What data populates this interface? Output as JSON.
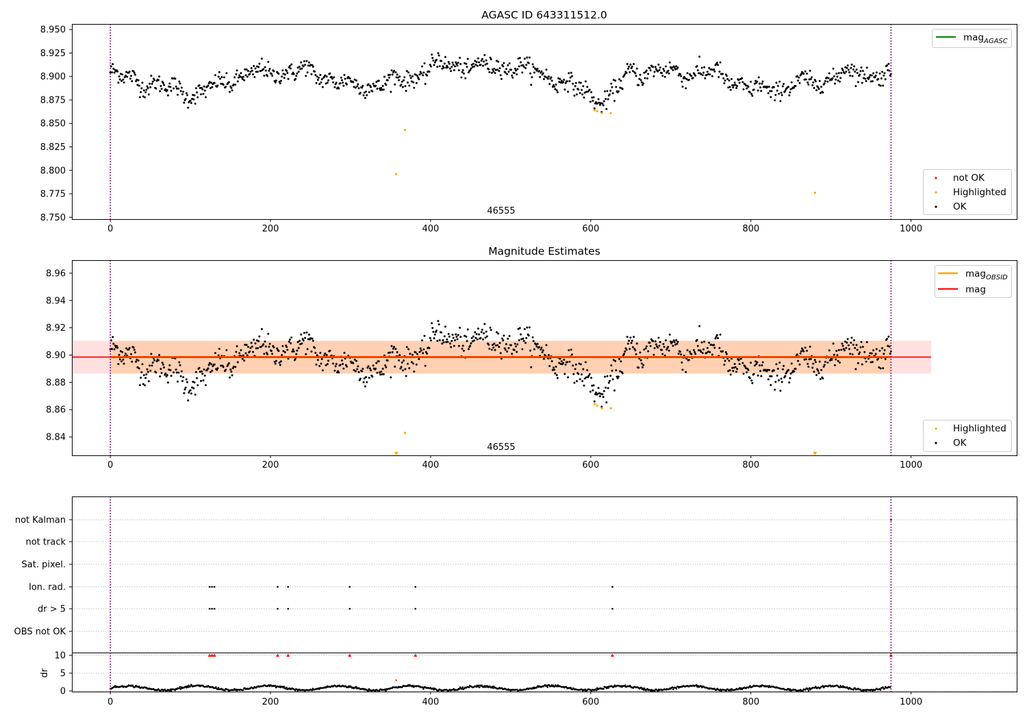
{
  "chart_data": [
    {
      "type": "scatter",
      "title": "AGASC ID 643311512.0",
      "xlim": [
        -48,
        1132
      ],
      "ylim": [
        8.748,
        8.956
      ],
      "x_ticks": [
        0,
        200,
        400,
        600,
        800,
        1000
      ],
      "y_ticks": [
        8.75,
        8.775,
        8.8,
        8.825,
        8.85,
        8.875,
        8.9,
        8.925,
        8.95
      ],
      "y_tick_labels": [
        "8.750",
        "8.775",
        "8.800",
        "8.825",
        "8.850",
        "8.875",
        "8.900",
        "8.925",
        "8.950"
      ],
      "vlines": [
        0,
        975
      ],
      "annotation": {
        "text": "46555",
        "x": 487,
        "y": 8.75
      },
      "legend_lines": [
        {
          "name": "mag",
          "sub": "AGASC",
          "color": "#008000"
        }
      ],
      "legend_points": [
        {
          "name": "not OK",
          "color": "#ff0000"
        },
        {
          "name": "Highlighted",
          "color": "#ffa500"
        },
        {
          "name": "OK",
          "color": "#000000"
        }
      ],
      "ok_series": {
        "n": 975,
        "x_range": [
          0,
          975
        ],
        "trend_knots": [
          [
            0,
            8.903
          ],
          [
            60,
            8.89
          ],
          [
            110,
            8.881
          ],
          [
            160,
            8.9
          ],
          [
            200,
            8.905
          ],
          [
            250,
            8.905
          ],
          [
            300,
            8.89
          ],
          [
            340,
            8.892
          ],
          [
            380,
            8.9
          ],
          [
            410,
            8.913
          ],
          [
            460,
            8.91
          ],
          [
            500,
            8.912
          ],
          [
            550,
            8.9
          ],
          [
            580,
            8.888
          ],
          [
            620,
            8.873
          ],
          [
            650,
            8.905
          ],
          [
            700,
            8.905
          ],
          [
            760,
            8.903
          ],
          [
            800,
            8.885
          ],
          [
            840,
            8.888
          ],
          [
            880,
            8.895
          ],
          [
            930,
            8.905
          ],
          [
            975,
            8.9
          ]
        ],
        "scatter": 0.008
      },
      "highlighted": [
        [
          357,
          8.796
        ],
        [
          368,
          8.843
        ],
        [
          605,
          8.864
        ],
        [
          608,
          8.863
        ],
        [
          614,
          8.861
        ],
        [
          625,
          8.861
        ],
        [
          880,
          8.776
        ]
      ],
      "not_ok": []
    },
    {
      "type": "scatter",
      "title": "Magnitude Estimates",
      "xlim": [
        -48,
        1132
      ],
      "ylim": [
        8.8265,
        8.9695
      ],
      "x_ticks": [
        0,
        200,
        400,
        600,
        800,
        1000
      ],
      "y_ticks": [
        8.84,
        8.86,
        8.88,
        8.9,
        8.92,
        8.94,
        8.96
      ],
      "y_tick_labels": [
        "8.84",
        "8.86",
        "8.88",
        "8.90",
        "8.92",
        "8.94",
        "8.96"
      ],
      "vlines": [
        0,
        975
      ],
      "annotation": {
        "text": "46555",
        "x": 487,
        "y": 8.828
      },
      "bands": [
        {
          "x": [
            0,
            975
          ],
          "y": [
            8.8865,
            8.9105
          ],
          "color": "#ffa500",
          "opacity": 0.2
        },
        {
          "x": [
            -48,
            1025
          ],
          "y": [
            8.8865,
            8.9105
          ],
          "color": "#ff0000",
          "opacity": 0.12
        }
      ],
      "hlines": [
        {
          "name": "mag OBSID",
          "x": [
            0,
            975
          ],
          "y": 8.8985,
          "color": "#ffa500"
        },
        {
          "name": "mag",
          "x": [
            -48,
            1025
          ],
          "y": 8.8985,
          "color": "#ff0000"
        }
      ],
      "legend_lines": [
        {
          "name": "mag",
          "sub": "OBSID",
          "color": "#ffa500"
        },
        {
          "name": "mag",
          "sub": "",
          "color": "#ff0000"
        }
      ],
      "legend_points": [
        {
          "name": "Highlighted",
          "color": "#ffa500"
        },
        {
          "name": "OK",
          "color": "#000000"
        }
      ],
      "ok_series": "same as panel 1",
      "highlighted": [
        [
          368,
          8.843
        ],
        [
          605,
          8.864
        ],
        [
          608,
          8.863
        ],
        [
          614,
          8.861
        ],
        [
          625,
          8.861
        ]
      ],
      "out_of_range_markers": [
        357,
        880
      ]
    },
    {
      "type": "scatter",
      "title": "",
      "xlim": [
        -48,
        1132
      ],
      "ylim": [
        -0.7,
        8.05
      ],
      "x_ticks": [
        0,
        200,
        400,
        600,
        800,
        1000
      ],
      "vlines": [
        0,
        975
      ],
      "category_labels": [
        "not Kalman",
        "not track",
        "Sat. pixel.",
        "Ion. rad.",
        "dr > 5",
        "OBS not OK"
      ],
      "flag_points": {
        "Ion. rad.": [
          124,
          127,
          130,
          209,
          222,
          299,
          381,
          627
        ],
        "dr > 5": [
          124,
          127,
          130,
          209,
          222,
          299,
          381,
          627
        ],
        "not Kalman": [
          975
        ]
      },
      "dr_subplot": {
        "ylabel": "dr",
        "y_ticks": [
          0,
          5,
          10
        ],
        "y_tick_labels": [
          "0",
          "5",
          "10"
        ],
        "clipped_markers": [
          124,
          127,
          130,
          209,
          222,
          299,
          381,
          627,
          975
        ],
        "extra_points": [
          [
            357,
            3.0
          ]
        ],
        "trend_range": [
          0.2,
          1.6
        ]
      }
    }
  ]
}
